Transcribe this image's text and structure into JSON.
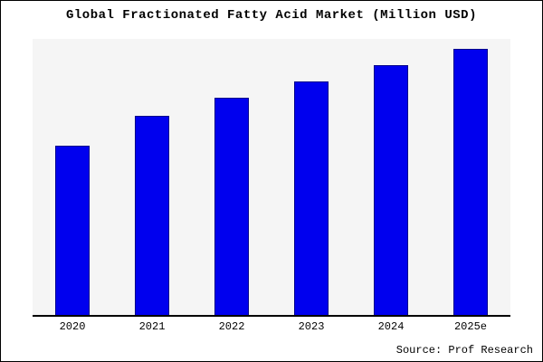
{
  "chart_data": {
    "type": "bar",
    "title": "Global Fractionated Fatty Acid Market (Million USD)",
    "categories": [
      "2020",
      "2021",
      "2022",
      "2023",
      "2024",
      "2025e"
    ],
    "values": [
      190,
      224,
      244,
      262,
      281,
      299
    ],
    "ylim": [
      0,
      310
    ],
    "xlabel": "",
    "ylabel": "",
    "grid": false,
    "legend": false,
    "bar_color": "#0000ee",
    "bar_edge_color": "#00008b",
    "plot_background": "#f5f5f5",
    "source_note": "Source: Prof Research"
  }
}
